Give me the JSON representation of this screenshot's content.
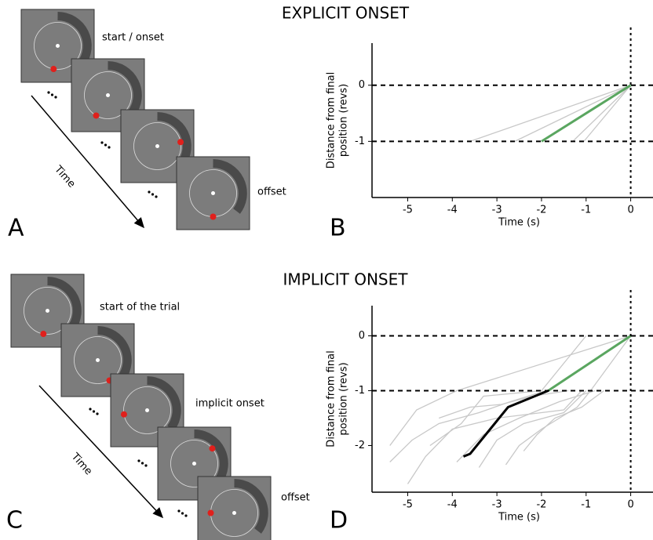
{
  "chart_data": [
    {
      "type": "line",
      "title": "EXPLICIT ONSET",
      "panel": "B",
      "xlabel": "Time (s)",
      "ylabel": [
        "Distance from final",
        "position (revs)"
      ],
      "xlim": [
        -5.8,
        0.5
      ],
      "ylim": [
        -2,
        0.75
      ],
      "xticks": [
        -5,
        -4,
        -3,
        -2,
        -1,
        0
      ],
      "yticks": [
        0,
        -1
      ],
      "hlines": [
        0,
        -1
      ],
      "vlines": [
        0
      ],
      "series": [
        {
          "color": "#c8c8c8",
          "x": [
            -3.6,
            0
          ],
          "values": [
            -1,
            0
          ]
        },
        {
          "color": "#c8c8c8",
          "x": [
            -2.6,
            0
          ],
          "values": [
            -1,
            0
          ]
        },
        {
          "color": "#c8c8c8",
          "x": [
            -1.3,
            0
          ],
          "values": [
            -1,
            0
          ]
        },
        {
          "color": "#c8c8c8",
          "x": [
            -1.05,
            0
          ],
          "values": [
            -1,
            0
          ]
        },
        {
          "color": "#5aa660",
          "x": [
            -2,
            0
          ],
          "values": [
            -1,
            0
          ]
        }
      ]
    },
    {
      "type": "line",
      "title": "IMPLICIT ONSET",
      "panel": "D",
      "xlabel": "Time (s)",
      "ylabel": [
        "Distance from final",
        "position (revs)"
      ],
      "xlim": [
        -5.8,
        0.5
      ],
      "ylim": [
        -2.85,
        0.55
      ],
      "xticks": [
        -5,
        -4,
        -3,
        -2,
        -1,
        0
      ],
      "yticks": [
        0,
        -1,
        -2
      ],
      "hlines": [
        0,
        -1
      ],
      "vlines": [
        0
      ],
      "series": [
        {
          "color": "#c8c8c8",
          "x": [
            -5.4,
            -4.8,
            -3.9,
            0
          ],
          "values": [
            -2.0,
            -1.35,
            -1.0,
            0
          ]
        },
        {
          "color": "#c8c8c8",
          "x": [
            -5.4,
            -4.9,
            -4.3,
            -3.4,
            -2.7,
            -1.9
          ],
          "values": [
            -2.3,
            -1.9,
            -1.6,
            -1.4,
            -1.2,
            -1.0
          ]
        },
        {
          "color": "#c8c8c8",
          "x": [
            -5.0,
            -4.6,
            -4.0,
            -3.0,
            -1.5,
            -1.1
          ],
          "values": [
            -2.7,
            -2.2,
            -1.7,
            -1.5,
            -1.35,
            -1.0
          ]
        },
        {
          "color": "#c8c8c8",
          "x": [
            -4.5,
            -3.8,
            -3.3,
            -2.0,
            -1.0
          ],
          "values": [
            -2.0,
            -1.6,
            -1.1,
            -1.0,
            0
          ]
        },
        {
          "color": "#c8c8c8",
          "x": [
            -3.9,
            -3.3,
            -2.5,
            -1.6,
            -0.8
          ],
          "values": [
            -2.3,
            -1.8,
            -1.5,
            -1.2,
            -1.0
          ]
        },
        {
          "color": "#c8c8c8",
          "x": [
            -3.4,
            -3.0,
            -2.4,
            -1.5,
            -1.0
          ],
          "values": [
            -2.4,
            -1.9,
            -1.6,
            -1.4,
            -1.0
          ]
        },
        {
          "color": "#c8c8c8",
          "x": [
            -2.8,
            -2.5,
            -2.0,
            -1.2,
            -0.9,
            0
          ],
          "values": [
            -2.35,
            -2.0,
            -1.7,
            -1.3,
            -1.0,
            0
          ]
        },
        {
          "color": "#c8c8c8",
          "x": [
            -2.4,
            -2.1,
            -1.7,
            -1.1,
            -0.6
          ],
          "values": [
            -2.1,
            -1.8,
            -1.5,
            -1.3,
            -1.0
          ]
        },
        {
          "color": "#c8c8c8",
          "x": [
            -4.3,
            -3.6,
            -2.9,
            -2.2,
            -1.4
          ],
          "values": [
            -1.5,
            -1.3,
            -1.25,
            -1.1,
            -1.0
          ]
        },
        {
          "color": "#000000",
          "x": [
            -3.75,
            -3.6,
            -2.75,
            -1.85
          ],
          "values": [
            -2.2,
            -2.15,
            -1.3,
            -1.0
          ]
        },
        {
          "color": "#5aa660",
          "x": [
            -1.85,
            0
          ],
          "values": [
            -1.0,
            0
          ]
        }
      ]
    }
  ],
  "panels": [
    "A",
    "C"
  ],
  "diagrams": [
    {
      "labels": [
        "start / onset",
        "offset"
      ],
      "axis": "Time"
    },
    {
      "labels": [
        "start of the trial",
        "implicit onset",
        "offset"
      ],
      "axis": "Time"
    }
  ]
}
